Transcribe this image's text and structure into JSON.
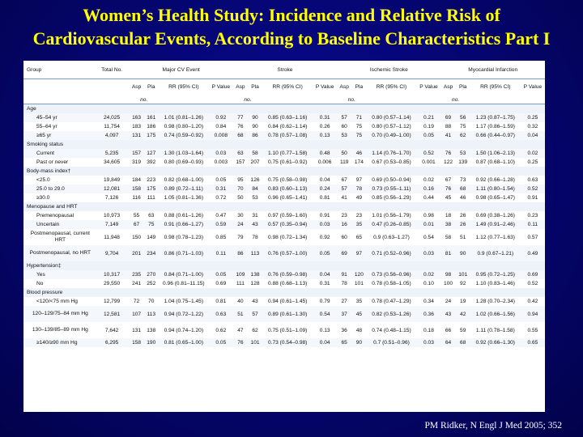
{
  "title_line1": "Women’s Health Study: Incidence and Relative Risk of",
  "title_line2": "Cardiovascular Events, According to Baseline Characteristics Part I",
  "citation": "PM Ridker, N Engl J Med 2005; 352",
  "table": {
    "group_header": "Group",
    "total_header": "Total No.",
    "outcomes": [
      "Major CV Event",
      "Stroke",
      "Ischemic Stroke",
      "Myocardial Infarction"
    ],
    "subheaders": [
      "Asp",
      "Pla",
      "RR (95% CI)",
      "P Value"
    ],
    "count_unit": "no.",
    "sections": [
      {
        "label": "Age",
        "rows": [
          [
            "45–54 yr",
            "24,025",
            "163",
            "161",
            "1.01 (0.81–1.26)",
            "0.92",
            "77",
            "90",
            "0.85 (0.63–1.16)",
            "0.31",
            "57",
            "71",
            "0.80 (0.57–1.14)",
            "0.21",
            "69",
            "56",
            "1.23 (0.87–1.75)",
            "0.25"
          ],
          [
            "55–64 yr",
            "11,754",
            "183",
            "186",
            "0.98 (0.80–1.20)",
            "0.84",
            "76",
            "90",
            "0.84 (0.62–1.14)",
            "0.26",
            "60",
            "75",
            "0.80 (0.57–1.12)",
            "0.19",
            "88",
            "75",
            "1.17 (0.86–1.59)",
            "0.32"
          ],
          [
            "≥65 yr",
            "4,097",
            "131",
            "175",
            "0.74 (0.59–0.92)",
            "0.008",
            "68",
            "86",
            "0.78 (0.57–1.08)",
            "0.13",
            "53",
            "75",
            "0.70 (0.49–1.00)",
            "0.05",
            "41",
            "62",
            "0.66 (0.44–0.97)",
            "0.04"
          ]
        ]
      },
      {
        "label": "Smoking status",
        "rows": [
          [
            "Current",
            "5,235",
            "157",
            "127",
            "1.30 (1.03–1.64)",
            "0.03",
            "63",
            "58",
            "1.10 (0.77–1.58)",
            "0.48",
            "50",
            "46",
            "1.14 (0.76–1.70)",
            "0.52",
            "76",
            "53",
            "1.50 (1.06–2.13)",
            "0.02"
          ],
          [
            "Past or never",
            "34,605",
            "319",
            "392",
            "0.80 (0.69–0.93)",
            "0.003",
            "157",
            "207",
            "0.75 (0.61–0.92)",
            "0.006",
            "119",
            "174",
            "0.67 (0.53–0.85)",
            "0.001",
            "122",
            "139",
            "0.87 (0.68–1.10)",
            "0.25"
          ]
        ]
      },
      {
        "label": "Body-mass index†",
        "rows": [
          [
            "<25.0",
            "19,849",
            "184",
            "223",
            "0.82 (0.68–1.00)",
            "0.05",
            "95",
            "126",
            "0.75 (0.58–0.98)",
            "0.04",
            "67",
            "97",
            "0.69 (0.50–0.94)",
            "0.02",
            "67",
            "73",
            "0.92 (0.66–1.28)",
            "0.63"
          ],
          [
            "25.0 to 29.0",
            "12,081",
            "158",
            "175",
            "0.89 (0.72–1.11)",
            "0.31",
            "70",
            "84",
            "0.83 (0.60–1.13)",
            "0.24",
            "57",
            "78",
            "0.73 (0.55–1.11)",
            "0.16",
            "76",
            "68",
            "1.11 (0.80–1.54)",
            "0.52"
          ],
          [
            "≥30.0",
            "7,126",
            "116",
            "111",
            "1.05 (0.81–1.36)",
            "0.72",
            "50",
            "53",
            "0.96 (0.65–1.41)",
            "0.81",
            "41",
            "49",
            "0.85 (0.56–1.29)",
            "0.44",
            "45",
            "46",
            "0.98 (0.65–1.47)",
            "0.91"
          ]
        ]
      },
      {
        "label": "Menopause and HRT",
        "rows": [
          [
            "Premenopausal",
            "10,973",
            "55",
            "63",
            "0.88 (0.61–1.26)",
            "0.47",
            "30",
            "31",
            "0.97 (0.59–1.60)",
            "0.91",
            "23",
            "23",
            "1.01 (0.56–1.79)",
            "0.98",
            "18",
            "26",
            "0.69 (0.38–1.26)",
            "0.23"
          ],
          [
            "Uncertain",
            "7,149",
            "67",
            "75",
            "0.91 (0.66–1.27)",
            "0.59",
            "24",
            "43",
            "0.57 (0.35–0.94)",
            "0.03",
            "16",
            "35",
            "0.47 (0.26–0.85)",
            "0.01",
            "38",
            "26",
            "1.49 (0.91–2.46)",
            "0.11"
          ],
          [
            "Postmenopausal, current HRT",
            "11,948",
            "150",
            "149",
            "0.98 (0.78–1.23)",
            "0.85",
            "79",
            "78",
            "0.98 (0.72–1.34)",
            "0.92",
            "60",
            "65",
            "0.9 (0.63–1.27)",
            "0.54",
            "58",
            "51",
            "1.12 (0.77–1.63)",
            "0.57"
          ],
          [
            "Postmenopausal, no HRT",
            "9,704",
            "201",
            "234",
            "0.86 (0.71–1.03)",
            "0.11",
            "86",
            "113",
            "0.76 (0.57–1.00)",
            "0.05",
            "69",
            "97",
            "0.71 (0.52–0.96)",
            "0.03",
            "81",
            "90",
            "0.9 (0.67–1.21)",
            "0.49"
          ]
        ]
      },
      {
        "label": "Hypertension‡",
        "rows": [
          [
            "Yes",
            "10,317",
            "235",
            "270",
            "0.84 (0.71–1.00)",
            "0.05",
            "109",
            "138",
            "0.76 (0.59–0.98)",
            "0.04",
            "91",
            "120",
            "0.73 (0.56–0.96)",
            "0.02",
            "98",
            "101",
            "0.95 (0.72–1.25)",
            "0.69"
          ],
          [
            "No",
            "29,550",
            "241",
            "252",
            "0.96 (0.81–11.15)",
            "0.69",
            "111",
            "128",
            "0.88 (0.68–1.13)",
            "0.31",
            "78",
            "101",
            "0.78 (0.58–1.05)",
            "0.10",
            "100",
            "92",
            "1.10 (0.83–1.46)",
            "0.52"
          ]
        ]
      },
      {
        "label": "Blood pressure",
        "rows": [
          [
            "<120/<75 mm Hg",
            "12,799",
            "72",
            "70",
            "1.04 (0.75–1.45)",
            "0.81",
            "40",
            "43",
            "0.94 (0.61–1.45)",
            "0.79",
            "27",
            "35",
            "0.78 (0.47–1.29)",
            "0.34",
            "24",
            "19",
            "1.28 (0.70–2.34)",
            "0.42"
          ],
          [
            "120–129/75–84 mm Hg",
            "12,581",
            "107",
            "113",
            "0.94 (0.72–1.22)",
            "0.63",
            "51",
            "57",
            "0.89 (0.61–1.30)",
            "0.54",
            "37",
            "45",
            "0.82 (0.53–1.26)",
            "0.36",
            "43",
            "42",
            "1.02 (0.66–1.56)",
            "0.94"
          ],
          [
            "130–139/85–89 mm Hg",
            "7,642",
            "131",
            "138",
            "0.94 (0.74–1.20)",
            "0.62",
            "47",
            "62",
            "0.75 (0.51–1.09)",
            "0.13",
            "36",
            "48",
            "0.74 (0.48–1.15)",
            "0.18",
            "66",
            "59",
            "1.11 (0.78–1.58)",
            "0.55"
          ],
          [
            "≥140/≥90 mm Hg",
            "6,295",
            "158",
            "190",
            "0.81 (0.65–1.00)",
            "0.05",
            "76",
            "101",
            "0.73 (0.54–0.98)",
            "0.04",
            "65",
            "90",
            "0.7 (0.51–0.96)",
            "0.03",
            "64",
            "68",
            "0.92 (0.66–1.30)",
            "0.65"
          ]
        ]
      }
    ]
  }
}
